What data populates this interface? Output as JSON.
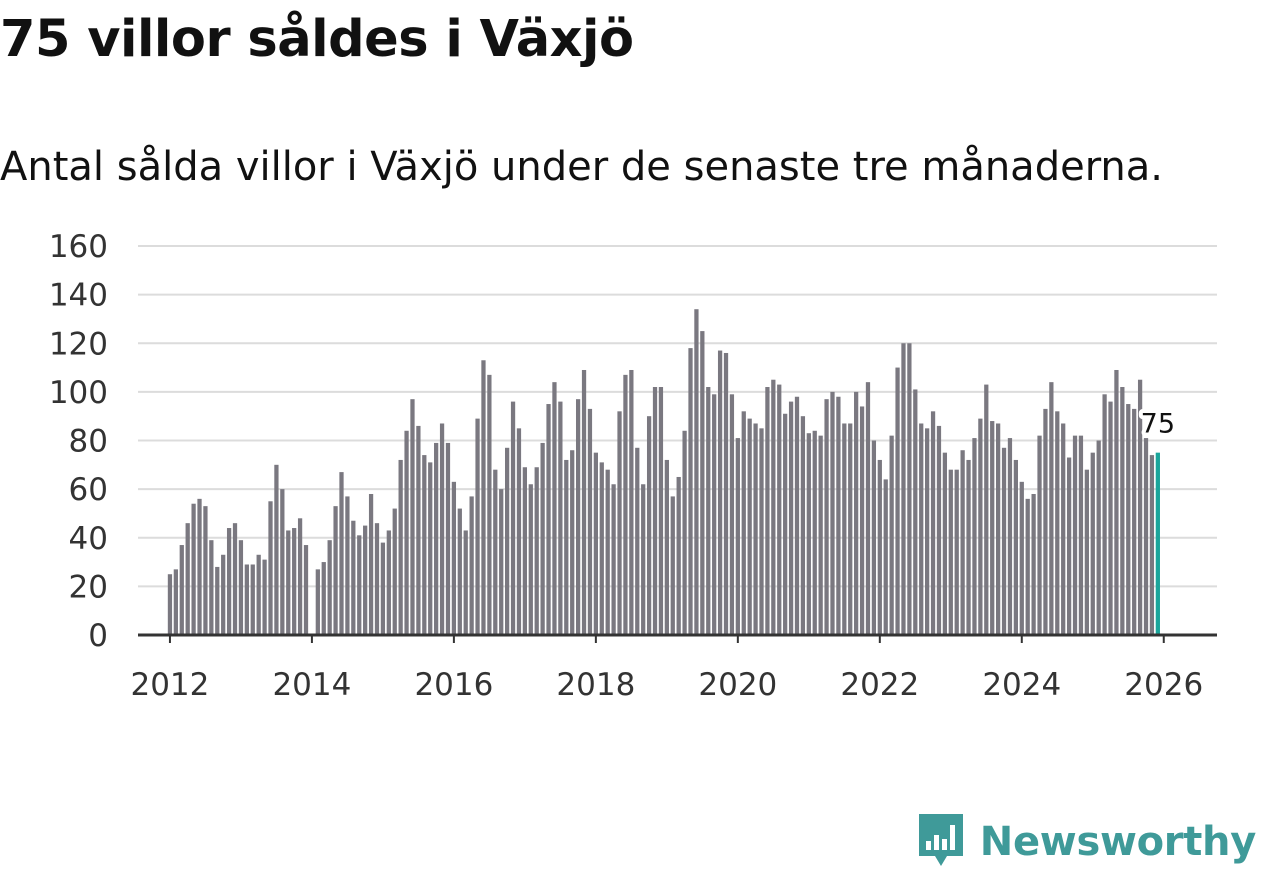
{
  "title": "75 villor såldes i Växjö",
  "subtitle": "Antal sålda villor i Växjö under de senaste tre månaderna.",
  "brand": {
    "name": "Newsworthy",
    "icon": "newsworthy-logo-icon",
    "color": "#3f9a99"
  },
  "colors": {
    "bar": "#7a7880",
    "highlight": "#1aa59b",
    "grid": "#dcdcdc",
    "axis": "#333333"
  },
  "chart_data": {
    "type": "bar",
    "title": "75 villor såldes i Växjö",
    "subtitle": "Antal sålda villor i Växjö under de senaste tre månaderna.",
    "xlabel": "",
    "ylabel": "",
    "ylim": [
      0,
      160
    ],
    "yticks": [
      0,
      20,
      40,
      60,
      80,
      100,
      120,
      140,
      160
    ],
    "xlim": [
      2011.55,
      2026.75
    ],
    "xticks": [
      "2012",
      "2014",
      "2016",
      "2018",
      "2020",
      "2022",
      "2024",
      "2026"
    ],
    "grid": true,
    "start": "2012-01",
    "frequency": "monthly",
    "last_value_label": "75",
    "values": [
      25,
      27,
      37,
      46,
      54,
      56,
      53,
      39,
      28,
      33,
      44,
      46,
      39,
      29,
      29,
      33,
      31,
      55,
      70,
      60,
      43,
      44,
      48,
      37,
      null,
      27,
      30,
      39,
      53,
      67,
      57,
      47,
      41,
      45,
      58,
      46,
      38,
      43,
      52,
      72,
      84,
      97,
      86,
      74,
      71,
      79,
      87,
      79,
      63,
      52,
      43,
      57,
      89,
      113,
      107,
      68,
      60,
      77,
      96,
      85,
      69,
      62,
      69,
      79,
      95,
      104,
      96,
      72,
      76,
      97,
      109,
      93,
      75,
      71,
      68,
      62,
      92,
      107,
      109,
      77,
      62,
      90,
      102,
      102,
      72,
      57,
      65,
      84,
      118,
      134,
      125,
      102,
      99,
      117,
      116,
      99,
      81,
      92,
      89,
      87,
      85,
      102,
      105,
      103,
      91,
      96,
      98,
      90,
      83,
      84,
      82,
      97,
      100,
      98,
      87,
      87,
      100,
      94,
      104,
      80,
      72,
      64,
      82,
      110,
      120,
      120,
      101,
      87,
      85,
      92,
      86,
      75,
      68,
      68,
      76,
      72,
      81,
      89,
      103,
      88,
      87,
      77,
      81,
      72,
      63,
      56,
      58,
      82,
      93,
      104,
      92,
      87,
      73,
      82,
      82,
      68,
      75,
      80,
      99,
      96,
      109,
      102,
      95,
      93,
      105,
      81,
      74,
      75
    ]
  }
}
